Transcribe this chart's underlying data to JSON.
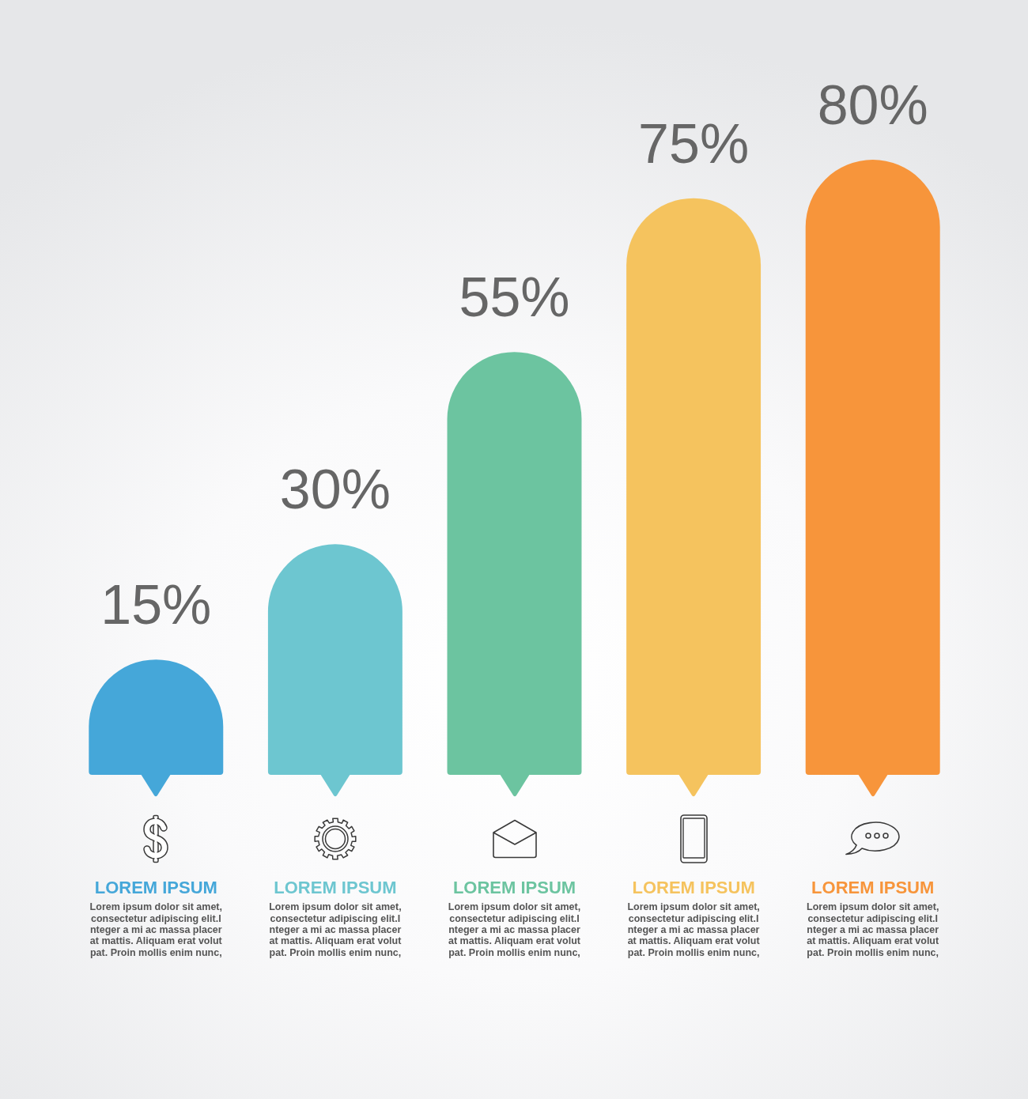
{
  "chart_data": {
    "type": "bar",
    "categories": [
      "LOREM IPSUM",
      "LOREM IPSUM",
      "LOREM IPSUM",
      "LOREM IPSUM",
      "LOREM IPSUM"
    ],
    "values": [
      15,
      30,
      55,
      75,
      80
    ],
    "colors": [
      "#45a7d9",
      "#6dc6d0",
      "#6cc4a0",
      "#f5c35e",
      "#f7953b"
    ],
    "value_labels": [
      "15%",
      "30%",
      "55%",
      "75%",
      "80%"
    ],
    "tick_labels": "x",
    "annotations": [
      "Lorem ipsum dolor sit amet,\nconsectetur adipiscing elit.I\nnteger a mi ac massa placer\nat mattis. Aliquam erat volut\npat. Proin mollis enim nunc,",
      "Lorem ipsum dolor sit amet,\nconsectetur adipiscing elit.I\nnteger a mi ac massa placer\nat mattis. Aliquam erat volut\npat. Proin mollis enim nunc,",
      "Lorem ipsum dolor sit amet,\nconsectetur adipiscing elit.I\nnteger a mi ac massa placer\nat mattis. Aliquam erat volut\npat. Proin mollis enim nunc,",
      "Lorem ipsum dolor sit amet,\nconsectetur adipiscing elit.I\nnteger a mi ac massa placer\nat mattis. Aliquam erat volut\npat. Proin mollis enim nunc,",
      "Lorem ipsum dolor sit amet,\nconsectetur adipiscing elit.I\nnteger a mi ac massa placer\nat mattis. Aliquam erat volut\npat. Proin mollis enim nunc,"
    ]
  }
}
